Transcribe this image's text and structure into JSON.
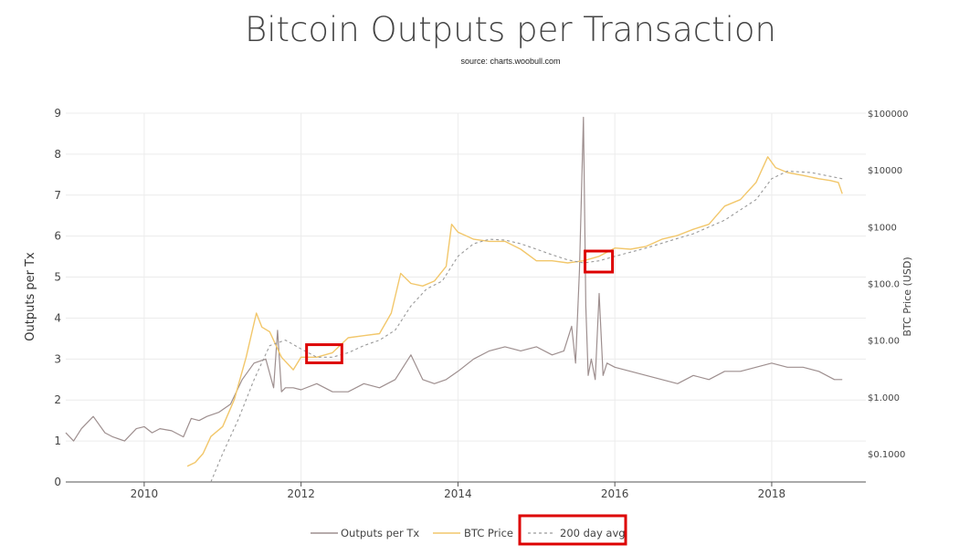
{
  "chart_data": {
    "type": "line",
    "title": "Bitcoin Outputs per Transaction",
    "subtitle": "source: charts.woobull.com",
    "ylabel": "Outputs per Tx",
    "y2label": "BTC Price (USD)",
    "xlim": [
      2009.0,
      2019.2
    ],
    "ylim": [
      0,
      9
    ],
    "y2lim_log10": [
      -1.5,
      5
    ],
    "x_ticks": [
      "2010",
      "2012",
      "2014",
      "2016",
      "2018"
    ],
    "y_ticks": [
      "0",
      "1",
      "2",
      "3",
      "4",
      "5",
      "6",
      "7",
      "8",
      "9"
    ],
    "y2_ticks": [
      "$0.1000",
      "$1.000",
      "$10.00",
      "$100.0",
      "$1000",
      "$10000",
      "$100000"
    ],
    "y2_scale": "log",
    "grid": true,
    "legend_position": "bottom-center",
    "colors": {
      "outputs": "#9e8f8f",
      "price": "#f2c76b",
      "avg": "#9a9a9a",
      "highlight": "#dd0000",
      "grid": "#ececec"
    },
    "series": [
      {
        "name": "Outputs per Tx",
        "axis": "left",
        "x": [
          2009.0,
          2009.1,
          2009.2,
          2009.35,
          2009.5,
          2009.6,
          2009.75,
          2009.9,
          2010.0,
          2010.1,
          2010.2,
          2010.35,
          2010.5,
          2010.6,
          2010.7,
          2010.8,
          2010.95,
          2011.1,
          2011.25,
          2011.4,
          2011.55,
          2011.65,
          2011.7,
          2011.75,
          2011.8,
          2011.9,
          2012.0,
          2012.2,
          2012.4,
          2012.6,
          2012.8,
          2013.0,
          2013.2,
          2013.4,
          2013.55,
          2013.7,
          2013.85,
          2014.0,
          2014.2,
          2014.4,
          2014.6,
          2014.8,
          2015.0,
          2015.2,
          2015.35,
          2015.45,
          2015.5,
          2015.55,
          2015.6,
          2015.63,
          2015.66,
          2015.7,
          2015.75,
          2015.8,
          2015.85,
          2015.9,
          2016.0,
          2016.2,
          2016.4,
          2016.6,
          2016.8,
          2017.0,
          2017.2,
          2017.4,
          2017.6,
          2017.8,
          2018.0,
          2018.2,
          2018.4,
          2018.6,
          2018.8,
          2018.9
        ],
        "values": [
          1.2,
          1.0,
          1.3,
          1.6,
          1.2,
          1.1,
          1.0,
          1.3,
          1.35,
          1.2,
          1.3,
          1.25,
          1.1,
          1.55,
          1.5,
          1.6,
          1.7,
          1.9,
          2.5,
          2.9,
          3.0,
          2.3,
          3.7,
          2.2,
          2.3,
          2.3,
          2.25,
          2.4,
          2.2,
          2.2,
          2.4,
          2.3,
          2.5,
          3.1,
          2.5,
          2.4,
          2.5,
          2.7,
          3.0,
          3.2,
          3.3,
          3.2,
          3.3,
          3.1,
          3.2,
          3.8,
          2.9,
          5.2,
          8.9,
          4.3,
          2.6,
          3.0,
          2.5,
          4.6,
          2.6,
          2.9,
          2.8,
          2.7,
          2.6,
          2.5,
          2.4,
          2.6,
          2.5,
          2.7,
          2.7,
          2.8,
          2.9,
          2.8,
          2.8,
          2.7,
          2.5,
          2.5
        ]
      },
      {
        "name": "BTC Price",
        "axis": "right",
        "x": [
          2010.55,
          2010.65,
          2010.75,
          2010.85,
          2011.0,
          2011.15,
          2011.3,
          2011.43,
          2011.5,
          2011.6,
          2011.75,
          2011.9,
          2012.0,
          2012.2,
          2012.4,
          2012.6,
          2012.8,
          2013.0,
          2013.15,
          2013.27,
          2013.4,
          2013.55,
          2013.7,
          2013.85,
          2013.92,
          2014.0,
          2014.2,
          2014.4,
          2014.6,
          2014.8,
          2015.0,
          2015.2,
          2015.4,
          2015.6,
          2015.8,
          2016.0,
          2016.2,
          2016.4,
          2016.6,
          2016.8,
          2017.0,
          2017.2,
          2017.4,
          2017.6,
          2017.8,
          2017.95,
          2018.05,
          2018.2,
          2018.4,
          2018.6,
          2018.75,
          2018.85,
          2018.9
        ],
        "values": [
          0.06,
          0.07,
          0.1,
          0.2,
          0.3,
          0.9,
          5,
          30,
          17,
          14,
          5,
          3,
          5,
          5,
          6,
          11,
          12,
          13,
          30,
          150,
          100,
          90,
          110,
          200,
          1100,
          800,
          600,
          550,
          550,
          400,
          250,
          250,
          230,
          250,
          300,
          420,
          400,
          450,
          600,
          700,
          900,
          1100,
          2300,
          3000,
          6000,
          17000,
          11000,
          9000,
          8000,
          7000,
          6500,
          6000,
          3800
        ]
      },
      {
        "name": "200 day avg",
        "axis": "right",
        "x": [
          2010.85,
          2011.0,
          2011.2,
          2011.4,
          2011.6,
          2011.8,
          2012.0,
          2012.2,
          2012.4,
          2012.6,
          2012.8,
          2013.0,
          2013.2,
          2013.4,
          2013.6,
          2013.8,
          2014.0,
          2014.2,
          2014.4,
          2014.6,
          2014.8,
          2015.0,
          2015.2,
          2015.4,
          2015.6,
          2015.8,
          2016.0,
          2016.4,
          2016.8,
          2017.0,
          2017.4,
          2017.8,
          2018.0,
          2018.2,
          2018.5,
          2018.9
        ],
        "values": [
          0.03,
          0.1,
          0.4,
          2,
          8,
          10,
          7,
          5,
          5,
          6,
          8,
          10,
          15,
          40,
          80,
          110,
          300,
          500,
          600,
          580,
          500,
          400,
          320,
          260,
          230,
          250,
          300,
          420,
          620,
          750,
          1300,
          3000,
          7000,
          9500,
          9000,
          7000
        ]
      }
    ],
    "highlights": [
      {
        "x0": 2012.07,
        "x1": 2012.52,
        "y0_log10": 0.6,
        "y1_log10": 0.92
      },
      {
        "x0": 2015.62,
        "x1": 2015.97,
        "y0_log10": 2.2,
        "y1_log10": 2.57
      }
    ],
    "legend": [
      "Outputs per Tx",
      "BTC Price",
      "200 day avg"
    ]
  }
}
